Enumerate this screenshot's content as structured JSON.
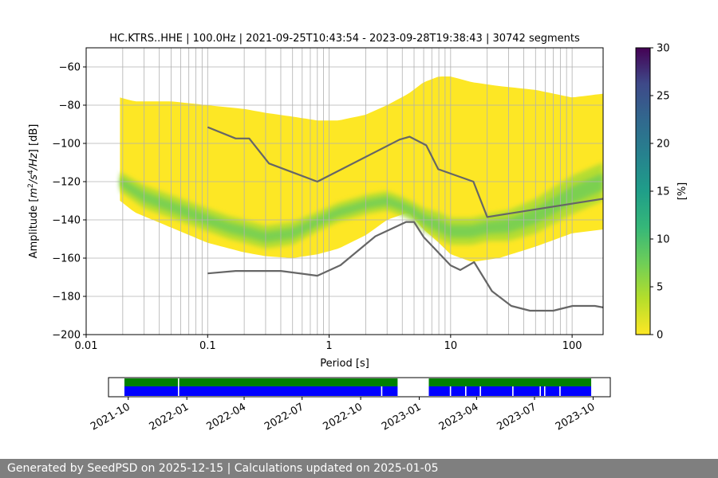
{
  "chart_data": [
    {
      "type": "heatmap",
      "title": "HC.KTRS..HHE | 100.0Hz | 2021-09-25T10:43:54 - 2023-09-28T19:38:43 | 30742 segments",
      "xlabel": "Period [s]",
      "ylabel_parts": [
        "Amplitude [",
        "m",
        "2",
        "/",
        "s",
        "4",
        "/",
        "Hz",
        "] [dB]"
      ],
      "x_scale": "log",
      "xlim": [
        0.01,
        180
      ],
      "ylim": [
        -200,
        -50
      ],
      "x_ticks": [
        0.01,
        0.1,
        1,
        10,
        100
      ],
      "x_tick_labels": [
        "0.01",
        "0.1",
        "1",
        "10",
        "100"
      ],
      "y_ticks": [
        -200,
        -180,
        -160,
        -140,
        -120,
        -100,
        -80,
        -60
      ],
      "y_tick_labels": [
        "−200",
        "−180",
        "−160",
        "−140",
        "−120",
        "−100",
        "−80",
        "−60"
      ],
      "grid": true,
      "colormap": "viridis_r",
      "colorbar": {
        "label": "[%]",
        "range": [
          0,
          30
        ],
        "ticks": [
          0,
          5,
          10,
          15,
          20,
          25,
          30
        ],
        "tick_labels": [
          "0",
          "5",
          "10",
          "15",
          "20",
          "25",
          "30"
        ]
      },
      "pdf_envelope": {
        "period": [
          0.019,
          0.025,
          0.05,
          0.1,
          0.2,
          0.3,
          0.5,
          0.8,
          1.2,
          2,
          3,
          4.5,
          6,
          8,
          10,
          15,
          25,
          50,
          100,
          180
        ],
        "upper_db": [
          -76,
          -78,
          -78,
          -80,
          -82,
          -84,
          -86,
          -88,
          -88,
          -85,
          -80,
          -74,
          -68,
          -65,
          -65,
          -68,
          -70,
          -72,
          -76,
          -74
        ],
        "lower_db": [
          -130,
          -136,
          -144,
          -152,
          -157,
          -159,
          -160,
          -158,
          -155,
          -148,
          -140,
          -136,
          -145,
          -152,
          -158,
          -162,
          -160,
          -154,
          -147,
          -145
        ]
      },
      "pdf_mode": {
        "period": [
          0.019,
          0.03,
          0.05,
          0.1,
          0.15,
          0.2,
          0.3,
          0.5,
          0.8,
          1.2,
          2,
          3,
          4,
          5,
          6,
          8,
          10,
          15,
          20,
          30,
          50,
          100,
          180
        ],
        "db": [
          -120,
          -128,
          -133,
          -140,
          -144,
          -146,
          -149,
          -147,
          -141,
          -136,
          -132,
          -130,
          -133,
          -136,
          -140,
          -143,
          -146,
          -146,
          -144,
          -143,
          -138,
          -127,
          -120
        ],
        "spread_db": [
          5,
          6,
          6,
          6,
          6,
          6,
          6,
          6,
          5,
          5,
          5,
          5,
          5,
          5,
          6,
          7,
          7,
          7,
          7,
          8,
          9,
          10,
          10
        ]
      },
      "noise_models": [
        {
          "period": [
            0.1,
            0.17,
            0.22,
            0.32,
            0.8,
            3.8,
            4.6,
            6.3,
            7.9,
            15.4,
            20,
            354.8
          ],
          "db": [
            -91.5,
            -97.4,
            -97.4,
            -110.5,
            -120,
            -98,
            -96.5,
            -101,
            -113.5,
            -120,
            -138.5,
            -126
          ]
        },
        {
          "period": [
            0.1,
            0.17,
            0.4,
            0.8,
            1.24,
            2.4,
            4.3,
            5,
            6,
            10,
            12,
            15.6,
            21.9,
            31.6,
            45,
            70,
            101,
            154,
            180
          ],
          "db": [
            -168,
            -166.7,
            -166.7,
            -169.2,
            -163.7,
            -148.6,
            -141.1,
            -141.1,
            -149,
            -163.8,
            -166.2,
            -162.1,
            -177.3,
            -185,
            -187.5,
            -187.5,
            -185,
            -185,
            -185.8
          ]
        }
      ]
    },
    {
      "type": "timeline",
      "x_tick_labels": [
        "2021-10",
        "2022-01",
        "2022-04",
        "2022-07",
        "2022-10",
        "2023-01",
        "2023-04",
        "2023-07",
        "2023-10"
      ],
      "x_ticks": [
        "2021-10-01",
        "2022-01-01",
        "2022-04-01",
        "2022-07-01",
        "2022-10-01",
        "2023-01-01",
        "2023-04-01",
        "2023-07-01",
        "2023-10-01"
      ],
      "xlim": [
        "2021-08-31",
        "2023-10-28"
      ],
      "data_spans": [
        [
          "2021-09-25",
          "2022-11-28"
        ],
        [
          "2023-01-16",
          "2023-09-28"
        ]
      ],
      "processed_gaps": [
        "2021-12-19",
        "2022-11-03",
        "2023-02-19",
        "2023-03-15",
        "2023-04-07",
        "2023-05-28",
        "2023-07-10",
        "2023-07-17",
        "2023-08-10"
      ],
      "data_color": "#0000ff",
      "processed_color": "#008000"
    }
  ],
  "footer": "Generated by SeedPSD on 2025-12-15 | Calculations updated on 2025-01-05"
}
